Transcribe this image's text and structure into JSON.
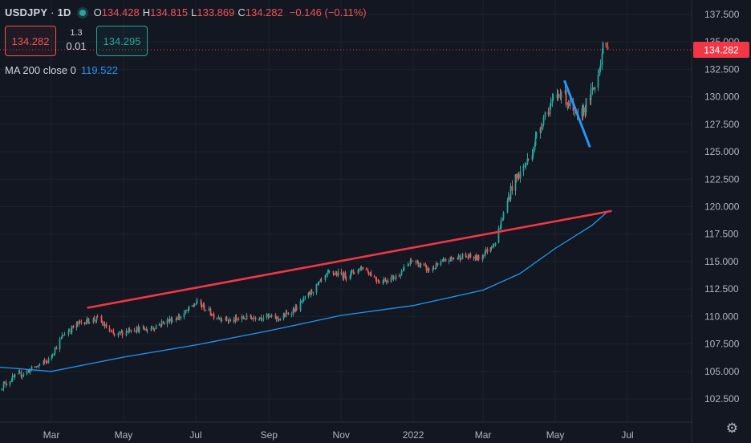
{
  "header": {
    "symbol": "USDJPY",
    "interval": "1D",
    "open_label": "O",
    "open": "134.428",
    "high_label": "H",
    "high": "134.815",
    "low_label": "L",
    "low": "133.869",
    "close_label": "C",
    "close": "134.282",
    "change": "−0.146 (−0.11%)"
  },
  "trade": {
    "sell": "134.282",
    "spread_top": "1.3",
    "spread_bottom": "0.01",
    "buy": "134.295"
  },
  "indicator": {
    "label": "MA 200 close 0",
    "value": "119.522"
  },
  "colors": {
    "background": "#131722",
    "grid": "#1e222d",
    "text": "#b2b5be",
    "up": "#26a69a",
    "down": "#ef5350",
    "ma": "#2196f3",
    "trendline": "#f23645",
    "price_tag": "#f23645"
  },
  "icons": {
    "settings": "gear-icon",
    "status": "market-open-dot"
  },
  "chart_data": {
    "type": "candlestick",
    "symbol": "USDJPY",
    "interval": "1D",
    "ylim": [
      100.5,
      138.6
    ],
    "y_ticks": [
      "137.500",
      "135.000",
      "132.500",
      "130.000",
      "127.500",
      "125.000",
      "122.500",
      "120.000",
      "117.500",
      "115.000",
      "112.500",
      "110.000",
      "107.500",
      "105.000",
      "102.500"
    ],
    "x_ticks": [
      "Mar",
      "May",
      "Jul",
      "Sep",
      "Nov",
      "2022",
      "Mar",
      "May",
      "Jul"
    ],
    "x_tick_dates": [
      "2021-03-01",
      "2021-05-01",
      "2021-07-01",
      "2021-09-01",
      "2021-11-01",
      "2022-01-01",
      "2022-03-01",
      "2022-05-01",
      "2022-07-01"
    ],
    "last_price": 134.282,
    "last_price_label": "134.282",
    "price_path": [
      [
        "2021-01-15",
        103.5
      ],
      [
        "2021-01-29",
        104.5
      ],
      [
        "2021-02-12",
        105.2
      ],
      [
        "2021-02-26",
        106.0
      ],
      [
        "2021-03-12",
        108.5
      ],
      [
        "2021-03-26",
        109.5
      ],
      [
        "2021-04-09",
        109.8
      ],
      [
        "2021-04-23",
        108.2
      ],
      [
        "2021-05-07",
        108.9
      ],
      [
        "2021-05-21",
        108.8
      ],
      [
        "2021-06-04",
        109.5
      ],
      [
        "2021-06-18",
        110.0
      ],
      [
        "2021-07-02",
        111.3
      ],
      [
        "2021-07-16",
        110.1
      ],
      [
        "2021-07-30",
        109.6
      ],
      [
        "2021-08-13",
        109.9
      ],
      [
        "2021-08-27",
        110.0
      ],
      [
        "2021-09-10",
        109.8
      ],
      [
        "2021-09-24",
        110.8
      ],
      [
        "2021-10-08",
        112.4
      ],
      [
        "2021-10-22",
        114.0
      ],
      [
        "2021-11-05",
        113.7
      ],
      [
        "2021-11-19",
        114.5
      ],
      [
        "2021-12-03",
        113.2
      ],
      [
        "2021-12-17",
        113.6
      ],
      [
        "2021-12-31",
        115.1
      ],
      [
        "2022-01-14",
        114.2
      ],
      [
        "2022-01-28",
        115.1
      ],
      [
        "2022-02-11",
        115.5
      ],
      [
        "2022-02-25",
        115.3
      ],
      [
        "2022-03-11",
        116.8
      ],
      [
        "2022-03-25",
        121.9
      ],
      [
        "2022-04-08",
        124.3
      ],
      [
        "2022-04-22",
        128.5
      ],
      [
        "2022-05-06",
        130.6
      ],
      [
        "2022-05-20",
        127.8
      ],
      [
        "2022-06-03",
        130.9
      ],
      [
        "2022-06-10",
        134.4
      ],
      [
        "2022-06-14",
        134.282
      ]
    ],
    "ma200": [
      [
        "2021-01-15",
        105.4
      ],
      [
        "2021-03-01",
        105.0
      ],
      [
        "2021-05-01",
        106.3
      ],
      [
        "2021-07-01",
        107.4
      ],
      [
        "2021-09-01",
        108.7
      ],
      [
        "2021-11-01",
        110.1
      ],
      [
        "2022-01-01",
        111.0
      ],
      [
        "2022-03-01",
        112.4
      ],
      [
        "2022-04-01",
        113.9
      ],
      [
        "2022-05-01",
        116.2
      ],
      [
        "2022-06-01",
        118.3
      ],
      [
        "2022-06-14",
        119.522
      ]
    ],
    "annotations": [
      {
        "type": "trendline",
        "color": "#f23645",
        "points": [
          [
            "2021-04-01",
            110.8
          ],
          [
            "2022-06-17",
            119.6
          ]
        ]
      },
      {
        "type": "trendline",
        "color": "#2196f3",
        "points": [
          [
            "2022-05-09",
            131.4
          ],
          [
            "2022-05-30",
            125.5
          ]
        ]
      }
    ]
  }
}
